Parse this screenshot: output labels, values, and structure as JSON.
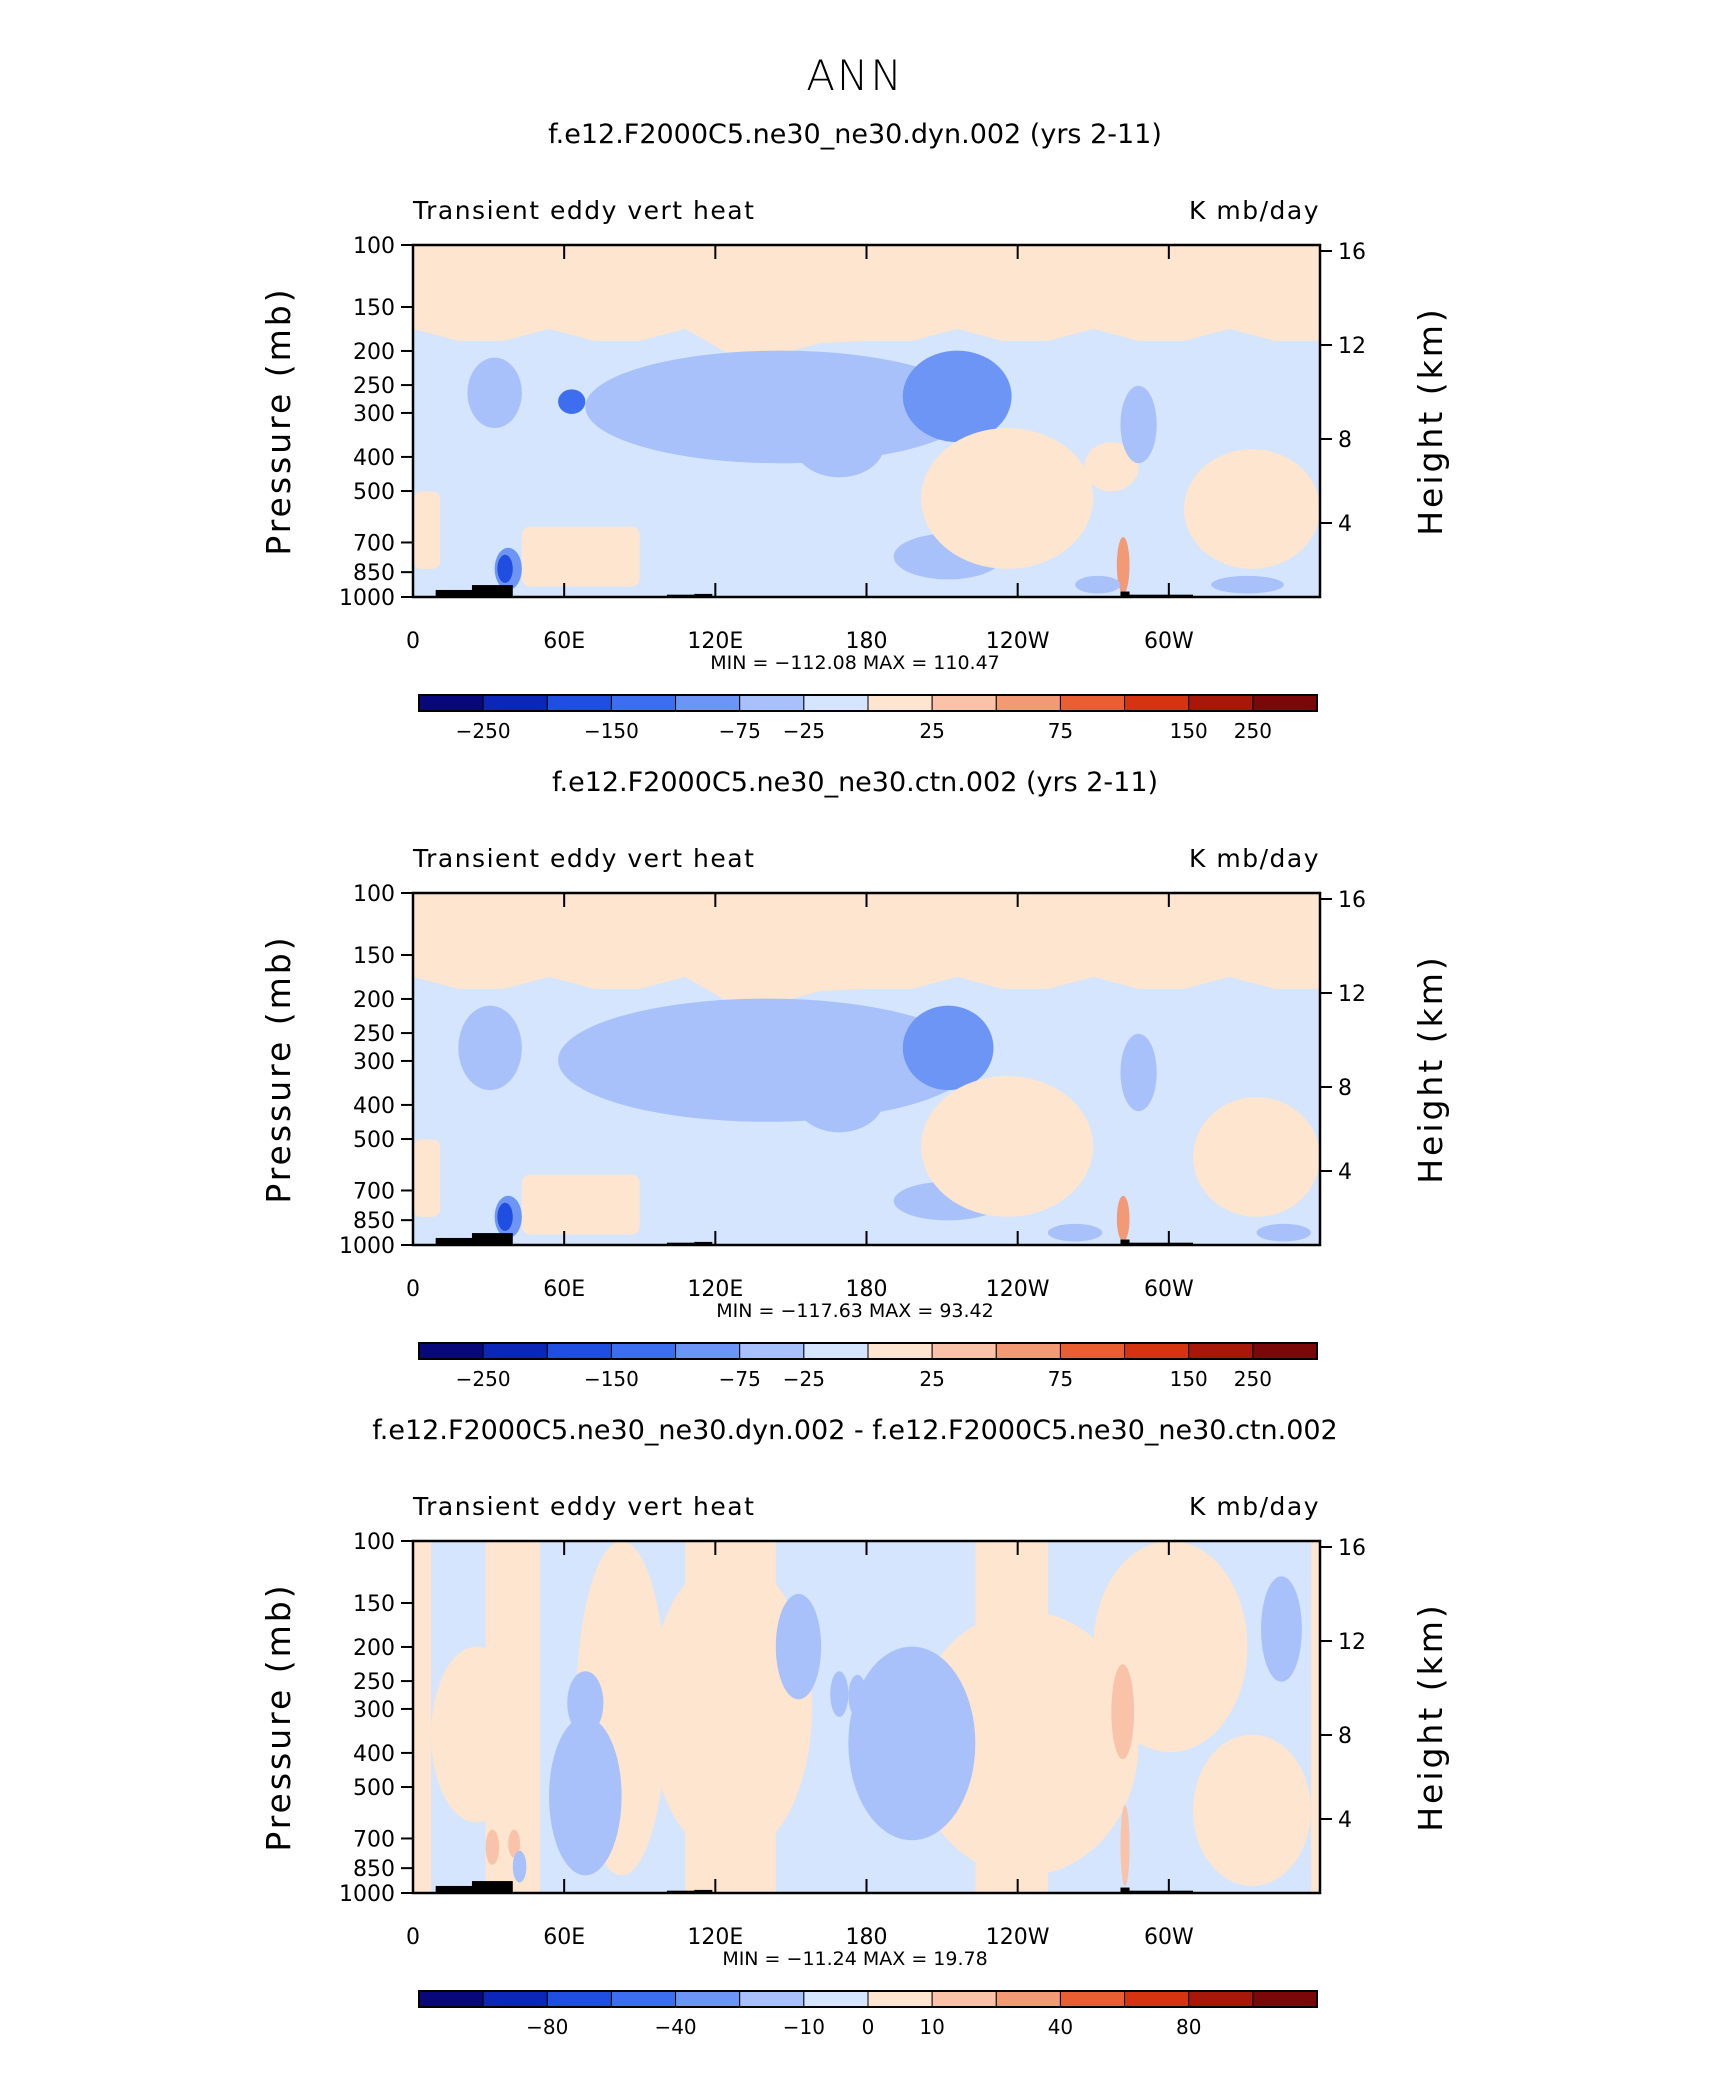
{
  "main_title": "ANN",
  "chart_data": [
    {
      "type": "contour",
      "title": "f.e12.F2000C5.ne30_ne30.dyn.002 (yrs 2-11)",
      "left_string": "Transient eddy vert heat",
      "right_string": "K mb/day",
      "xlabel": "",
      "ylabel": "Pressure (mb)",
      "ylabel_right": "Height (km)",
      "x_ticks": [
        "0",
        "60E",
        "120E",
        "180",
        "120W",
        "60W"
      ],
      "y_ticks": [
        "100",
        "150",
        "200",
        "250",
        "300",
        "400",
        "500",
        "700",
        "850",
        "1000"
      ],
      "y_ticks_right": [
        "16",
        "12",
        "8",
        "4"
      ],
      "ylim": [
        1000,
        100
      ],
      "y_scale": "log",
      "min_max_text": "MIN = −112.08   MAX =  110.47",
      "min": -112.08,
      "max": 110.47,
      "colorbar_labels": [
        "−250",
        "−150",
        "−75",
        "−25",
        "25",
        "75",
        "150",
        "250"
      ],
      "colorbar_levels": [
        -250,
        -200,
        -150,
        -100,
        -75,
        -50,
        -25,
        0,
        25,
        50,
        75,
        100,
        150,
        200,
        250
      ]
    },
    {
      "type": "contour",
      "title": "f.e12.F2000C5.ne30_ne30.ctn.002 (yrs 2-11)",
      "left_string": "Transient eddy vert heat",
      "right_string": "K mb/day",
      "xlabel": "",
      "ylabel": "Pressure (mb)",
      "ylabel_right": "Height (km)",
      "x_ticks": [
        "0",
        "60E",
        "120E",
        "180",
        "120W",
        "60W"
      ],
      "y_ticks": [
        "100",
        "150",
        "200",
        "250",
        "300",
        "400",
        "500",
        "700",
        "850",
        "1000"
      ],
      "y_ticks_right": [
        "16",
        "12",
        "8",
        "4"
      ],
      "ylim": [
        1000,
        100
      ],
      "y_scale": "log",
      "min_max_text": "MIN = −117.63   MAX =   93.42",
      "min": -117.63,
      "max": 93.42,
      "colorbar_labels": [
        "−250",
        "−150",
        "−75",
        "−25",
        "25",
        "75",
        "150",
        "250"
      ],
      "colorbar_levels": [
        -250,
        -200,
        -150,
        -100,
        -75,
        -50,
        -25,
        0,
        25,
        50,
        75,
        100,
        150,
        200,
        250
      ]
    },
    {
      "type": "contour",
      "title": "f.e12.F2000C5.ne30_ne30.dyn.002 - f.e12.F2000C5.ne30_ne30.ctn.002",
      "left_string": "Transient eddy vert heat",
      "right_string": "K mb/day",
      "xlabel": "",
      "ylabel": "Pressure (mb)",
      "ylabel_right": "Height (km)",
      "x_ticks": [
        "0",
        "60E",
        "120E",
        "180",
        "120W",
        "60W"
      ],
      "y_ticks": [
        "100",
        "150",
        "200",
        "250",
        "300",
        "400",
        "500",
        "700",
        "850",
        "1000"
      ],
      "y_ticks_right": [
        "16",
        "12",
        "8",
        "4"
      ],
      "ylim": [
        1000,
        100
      ],
      "y_scale": "log",
      "min_max_text": "MIN = −11.24   MAX =   19.78",
      "min": -11.24,
      "max": 19.78,
      "colorbar_labels": [
        "−80",
        "−40",
        "−10",
        "0",
        "10",
        "40",
        "80"
      ],
      "colorbar_levels": [
        -100,
        -80,
        -60,
        -40,
        -20,
        -10,
        -5,
        0,
        5,
        10,
        20,
        40,
        60,
        80,
        100
      ]
    }
  ],
  "colors": {
    "palette": [
      "#08087a",
      "#0c27b8",
      "#1f4ee0",
      "#3d6ef0",
      "#6d95f5",
      "#a9c1fa",
      "#d4e5fd",
      "#fde5cf",
      "#f8c3a8",
      "#f29a76",
      "#ea5f32",
      "#d4340f",
      "#a8180a",
      "#7a0808"
    ],
    "orography": "#000000"
  }
}
